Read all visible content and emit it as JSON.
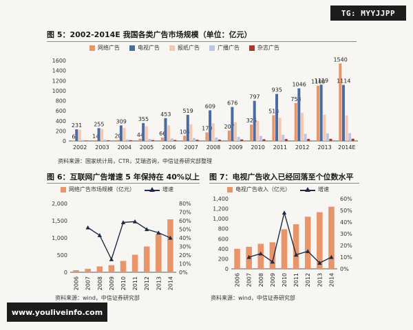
{
  "watermarks": {
    "top_right": "TG: MYYJJPP",
    "bottom_left": "www.youliveinfo.com"
  },
  "figure5": {
    "title": "图 5：2002-2014E 我国各类广告市场规模（单位：亿元）",
    "source": "资料来源：国家统计局，CTR，艾瑞咨询，中信证券研究部整理"
  },
  "figure6": {
    "title": "图 6：互联网广告增速 5 年保持在 40%以上",
    "source": "资料来源：wind，中信证券研究部"
  },
  "figure7": {
    "title": "图 7：电视广告收入已经回落至个位数水平",
    "source": "资料来源：wind，中信证券研究部"
  },
  "chart_data": [
    {
      "id": "fig5",
      "type": "bar",
      "title": "图 5：2002-2014E 我国各类广告市场规模（单位：亿元）",
      "categories": [
        "2002",
        "2003",
        "2004",
        "2005",
        "2006",
        "2007",
        "2008",
        "2009",
        "2010",
        "2011",
        "2012",
        "2013",
        "2014E"
      ],
      "ylim": [
        0,
        1600
      ],
      "yticks": [
        "0",
        "200",
        "400",
        "600",
        "800",
        "1000",
        "1200",
        "1400",
        "1600"
      ],
      "legend_position": "top",
      "series": [
        {
          "name": "网络广告",
          "color": "#e8956c",
          "values": [
            6,
            14,
            20,
            44,
            66,
            104,
            170,
            207,
            326,
            513,
            753,
            1100,
            1540
          ],
          "labeled": true
        },
        {
          "name": "电视广告",
          "color": "#4a6aa2",
          "values": [
            231,
            255,
            309,
            355,
            453,
            519,
            609,
            676,
            797,
            935,
            1046,
            1119,
            1114
          ],
          "labeled": true
        },
        {
          "name": "报纸广告",
          "color": "#f4c8b0",
          "values": [
            220,
            240,
            260,
            290,
            310,
            330,
            350,
            370,
            400,
            460,
            560,
            520,
            510
          ],
          "labeled": false
        },
        {
          "name": "广播广告",
          "color": "#b9c6de",
          "values": [
            20,
            25,
            30,
            40,
            50,
            60,
            70,
            80,
            100,
            120,
            140,
            150,
            155
          ],
          "labeled": false
        },
        {
          "name": "杂志广告",
          "color": "#a8382c",
          "values": [
            10,
            12,
            15,
            18,
            20,
            23,
            26,
            30,
            34,
            38,
            40,
            42,
            44
          ],
          "labeled": false
        }
      ]
    },
    {
      "id": "fig6",
      "type": "bar",
      "categories": [
        "2006",
        "2007",
        "2008",
        "2009",
        "2010",
        "2011",
        "2012",
        "2013",
        "2014"
      ],
      "ylim": [
        0,
        2000
      ],
      "yticks": [
        "0",
        "500",
        "1,000",
        "1,500",
        "2,000"
      ],
      "y2lim": [
        0,
        80
      ],
      "y2ticks": [
        "0%",
        "10%",
        "20%",
        "30%",
        "40%",
        "50%",
        "60%",
        "70%",
        "80%"
      ],
      "legend_position": "top",
      "series": [
        {
          "name": "网络广告市场规模（亿元）",
          "color": "#e8956c",
          "values": [
            60,
            100,
            170,
            207,
            330,
            510,
            750,
            1100,
            1540
          ],
          "axis": "left"
        },
        {
          "name": "增速",
          "color": "#1f2a44",
          "values": [
            null,
            52,
            43,
            15,
            58,
            59,
            50,
            46,
            40
          ],
          "axis": "right"
        }
      ]
    },
    {
      "id": "fig7",
      "type": "bar",
      "categories": [
        "2006",
        "2007",
        "2008",
        "2009",
        "2010",
        "2011",
        "2012",
        "2013",
        "2014"
      ],
      "ylim": [
        0,
        1400
      ],
      "yticks": [
        "0",
        "200",
        "400",
        "600",
        "800",
        "1,000",
        "1,200",
        "1,400"
      ],
      "y2lim": [
        0,
        60
      ],
      "y2ticks": [
        "0%",
        "10%",
        "20%",
        "30%",
        "40%",
        "50%",
        "60%"
      ],
      "legend_position": "top",
      "series": [
        {
          "name": "电视广告收入（亿元）",
          "color": "#e8956c",
          "values": [
            400,
            440,
            500,
            530,
            790,
            890,
            1040,
            1130,
            1240
          ],
          "axis": "left"
        },
        {
          "name": "增速",
          "color": "#1f2a44",
          "values": [
            null,
            10,
            13,
            6,
            48,
            12,
            15,
            5,
            10
          ],
          "axis": "right"
        }
      ]
    }
  ]
}
